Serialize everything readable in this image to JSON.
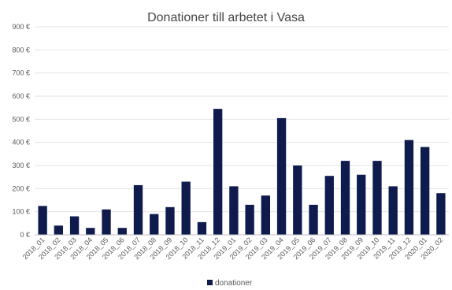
{
  "chart_data": {
    "type": "bar",
    "title": "Donationer till arbetet i Vasa",
    "xlabel": "",
    "ylabel": "",
    "ylim": [
      0,
      900
    ],
    "yticks": [
      0,
      100,
      200,
      300,
      400,
      500,
      600,
      700,
      800,
      900
    ],
    "ytick_labels": [
      "0 €",
      "100 €",
      "200 €",
      "300 €",
      "400 €",
      "500 €",
      "600 €",
      "700 €",
      "800 €",
      "900 €"
    ],
    "grid": true,
    "legend_position": "bottom",
    "categories": [
      "2018_01",
      "2018_02",
      "2018_03",
      "2018_04",
      "2018_05",
      "2018_06",
      "2018_07",
      "2018_08",
      "2018_09",
      "2018_10",
      "2018_11",
      "2018_12",
      "2019_01",
      "2019_02",
      "2019_03",
      "2019_04",
      "2019_05",
      "2019_06",
      "2019_07",
      "2019_08",
      "2019_09",
      "2019_10",
      "2019_11",
      "2019_12",
      "2020_01",
      "2020_02"
    ],
    "series": [
      {
        "name": "donationer",
        "color": "#0f1b4c",
        "values": [
          125,
          40,
          80,
          30,
          110,
          30,
          215,
          90,
          120,
          230,
          55,
          545,
          210,
          130,
          170,
          505,
          300,
          130,
          255,
          320,
          260,
          320,
          210,
          410,
          380,
          180
        ]
      }
    ]
  }
}
